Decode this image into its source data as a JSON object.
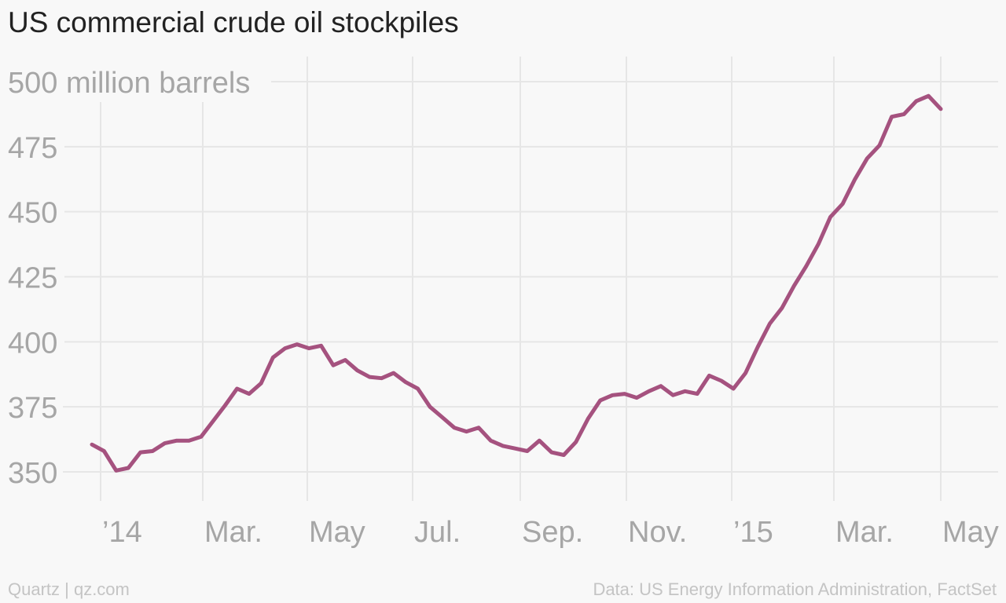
{
  "title": "US commercial crude oil stockpiles",
  "footer": {
    "source_left": "Quartz | qz.com",
    "source_right": "Data: US Energy Information Administration, FactSet"
  },
  "colors": {
    "line": "#a5527f",
    "grid": "#e6e6e6",
    "tick_text": "#a6a6a6",
    "background": "#f8f8f8"
  },
  "chart_data": {
    "type": "line",
    "title": "US commercial crude oil stockpiles",
    "ylabel": "million barrels",
    "y_unit_label": "500 million barrels",
    "ylim": [
      340,
      510
    ],
    "yticks": [
      350,
      375,
      400,
      425,
      450,
      475,
      500
    ],
    "x_tick_labels": [
      "’14",
      "Mar.",
      "May",
      "Jul.",
      "Sep.",
      "Nov.",
      "’15",
      "Mar.",
      "May"
    ],
    "x_tick_dates": [
      "2014-01-01",
      "2014-03-01",
      "2014-05-01",
      "2014-07-01",
      "2014-09-01",
      "2014-11-01",
      "2015-01-01",
      "2015-03-01",
      "2015-05-01"
    ],
    "grid": true,
    "legend": "none",
    "series": [
      {
        "x": [
          "2013-12-27",
          "2014-01-03",
          "2014-01-10",
          "2014-01-17",
          "2014-01-24",
          "2014-01-31",
          "2014-02-07",
          "2014-02-14",
          "2014-02-21",
          "2014-02-28",
          "2014-03-07",
          "2014-03-14",
          "2014-03-21",
          "2014-03-28",
          "2014-04-04",
          "2014-04-11",
          "2014-04-18",
          "2014-04-25",
          "2014-05-02",
          "2014-05-09",
          "2014-05-16",
          "2014-05-23",
          "2014-05-30",
          "2014-06-06",
          "2014-06-13",
          "2014-06-20",
          "2014-06-27",
          "2014-07-04",
          "2014-07-11",
          "2014-07-18",
          "2014-07-25",
          "2014-08-01",
          "2014-08-08",
          "2014-08-15",
          "2014-08-22",
          "2014-08-29",
          "2014-09-05",
          "2014-09-12",
          "2014-09-19",
          "2014-09-26",
          "2014-10-03",
          "2014-10-10",
          "2014-10-17",
          "2014-10-24",
          "2014-10-31",
          "2014-11-07",
          "2014-11-14",
          "2014-11-21",
          "2014-11-28",
          "2014-12-05",
          "2014-12-12",
          "2014-12-19",
          "2014-12-26",
          "2015-01-02",
          "2015-01-09",
          "2015-01-16",
          "2015-01-23",
          "2015-01-30",
          "2015-02-06",
          "2015-02-13",
          "2015-02-20",
          "2015-02-27",
          "2015-03-06",
          "2015-03-13",
          "2015-03-20",
          "2015-03-27",
          "2015-04-03",
          "2015-04-10",
          "2015-04-17",
          "2015-04-24",
          "2015-05-01"
        ],
        "values": [
          360.5,
          358,
          350.5,
          351.5,
          357.5,
          358,
          361,
          362,
          362,
          363.5,
          369.5,
          375.5,
          382,
          380,
          384,
          394,
          397.5,
          399,
          397.5,
          398.5,
          391,
          393,
          389,
          386.5,
          386,
          388,
          384.5,
          382,
          375,
          371,
          367,
          365.5,
          367,
          362,
          360,
          359,
          358,
          362,
          357.5,
          356.5,
          361.5,
          370.5,
          377.5,
          379.5,
          380,
          378.5,
          381,
          383,
          379.5,
          381,
          380,
          387,
          385,
          382,
          388,
          398,
          407,
          413,
          421.5,
          429,
          437.5,
          448,
          453,
          462.5,
          470.5,
          475.5,
          486.5,
          487.5,
          492.5,
          494.5,
          489.5
        ]
      }
    ]
  }
}
